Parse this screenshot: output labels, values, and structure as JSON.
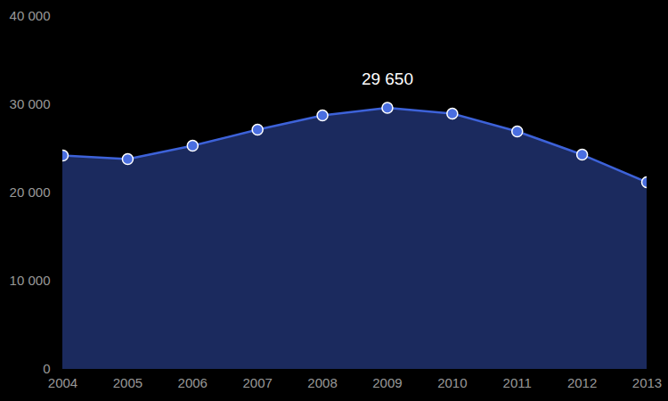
{
  "chart_data": {
    "type": "area",
    "x": [
      2004,
      2005,
      2006,
      2007,
      2008,
      2009,
      2010,
      2011,
      2012,
      2013
    ],
    "values": [
      24240,
      23840,
      25350,
      27170,
      28790,
      29650,
      28990,
      26970,
      24340,
      21210
    ],
    "color": "#3d62d9",
    "marker": "circle",
    "xlim": [
      2004,
      2013
    ],
    "xticks": [
      2004,
      2005,
      2006,
      2007,
      2008,
      2009,
      2010,
      2011,
      2012,
      2013
    ],
    "ylim": [
      0,
      40000
    ],
    "yticks": [
      0,
      {
        "value": 10000,
        "label": "10 000"
      },
      {
        "value": 20000,
        "label": "20 000"
      },
      {
        "value": 30000,
        "label": "30 000"
      },
      {
        "value": 40000,
        "label": "40 000"
      }
    ],
    "grid": false,
    "annotations": [
      {
        "x": 2009,
        "y": 29650,
        "text": "29 650"
      }
    ]
  }
}
